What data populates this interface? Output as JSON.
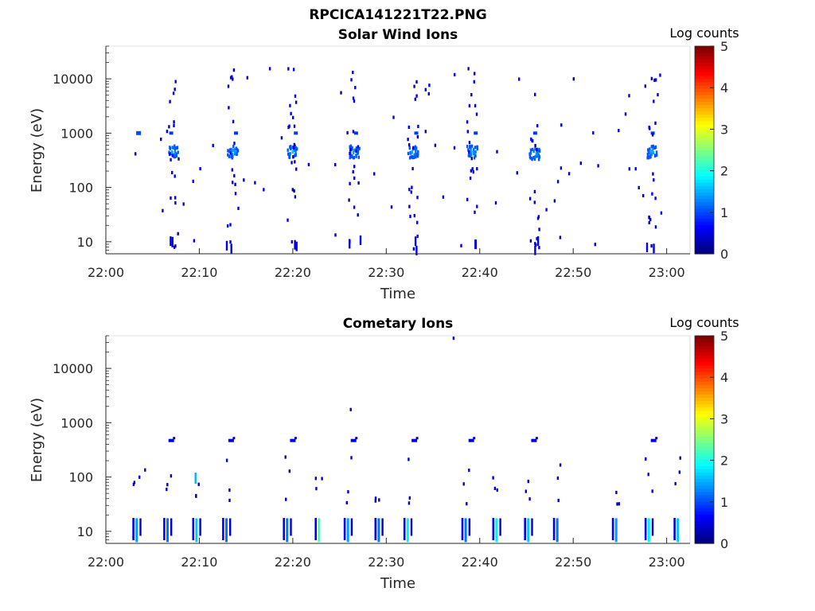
{
  "figure_title": "RPCICA141221T22.PNG",
  "chart_data": [
    {
      "type": "heatmap",
      "title": "Solar Wind Ions",
      "xlabel": "Time",
      "ylabel": "Energy (eV)",
      "yscale": "log",
      "ylim": [
        6,
        40000
      ],
      "xlim": [
        "22:00",
        "23:02.5"
      ],
      "x_ticks": [
        "22:00",
        "22:10",
        "22:20",
        "22:30",
        "22:40",
        "22:50",
        "23:00"
      ],
      "y_ticks": [
        "10",
        "100",
        "1000",
        "10000"
      ],
      "colorbar": {
        "label": "Log counts",
        "ticks": [
          "0",
          "1",
          "2",
          "3",
          "4",
          "5"
        ],
        "range": [
          0,
          5
        ],
        "colormap": "jet"
      },
      "grid": false,
      "blobs": [
        {
          "t": "22:07.2",
          "energy_eV": 450,
          "log_counts": 1.6
        },
        {
          "t": "22:13.6",
          "energy_eV": 450,
          "log_counts": 1.6
        },
        {
          "t": "22:20.0",
          "energy_eV": 450,
          "log_counts": 1.6
        },
        {
          "t": "22:26.6",
          "energy_eV": 450,
          "log_counts": 1.6
        },
        {
          "t": "22:32.9",
          "energy_eV": 450,
          "log_counts": 1.6
        },
        {
          "t": "22:39.2",
          "energy_eV": 450,
          "log_counts": 1.6
        },
        {
          "t": "22:45.9",
          "energy_eV": 420,
          "log_counts": 1.6
        },
        {
          "t": "22:58.5",
          "energy_eV": 450,
          "log_counts": 1.6
        }
      ]
    },
    {
      "type": "heatmap",
      "title": "Cometary Ions",
      "xlabel": "Time",
      "ylabel": "Energy (eV)",
      "yscale": "log",
      "ylim": [
        6,
        40000
      ],
      "xlim": [
        "22:00",
        "23:02.5"
      ],
      "x_ticks": [
        "22:00",
        "22:10",
        "22:20",
        "22:30",
        "22:40",
        "22:50",
        "23:00"
      ],
      "y_ticks": [
        "10",
        "100",
        "1000",
        "10000"
      ],
      "colorbar": {
        "label": "Log counts",
        "ticks": [
          "0",
          "1",
          "2",
          "3",
          "4",
          "5"
        ],
        "range": [
          0,
          5
        ],
        "colormap": "jet"
      },
      "grid": false,
      "bursts": [
        {
          "t": "22:03.3",
          "energy_eV": 12,
          "log_counts": 1.4
        },
        {
          "t": "22:06.6",
          "energy_eV": 12,
          "log_counts": 1.2
        },
        {
          "t": "22:09.7",
          "energy_eV": 12,
          "log_counts": 1.6
        },
        {
          "t": "22:12.9",
          "energy_eV": 12,
          "log_counts": 1.2
        },
        {
          "t": "22:19.4",
          "energy_eV": 12,
          "log_counts": 1.2
        },
        {
          "t": "22:22.8",
          "energy_eV": 12,
          "log_counts": 2.2
        },
        {
          "t": "22:25.9",
          "energy_eV": 12,
          "log_counts": 1.4
        },
        {
          "t": "22:29.2",
          "energy_eV": 12,
          "log_counts": 1.2
        },
        {
          "t": "22:32.3",
          "energy_eV": 12,
          "log_counts": 1.8
        },
        {
          "t": "22:38.5",
          "energy_eV": 12,
          "log_counts": 1.2
        },
        {
          "t": "22:41.8",
          "energy_eV": 12,
          "log_counts": 1.8
        },
        {
          "t": "22:45.2",
          "energy_eV": 12,
          "log_counts": 1.6
        },
        {
          "t": "22:48.3",
          "energy_eV": 12,
          "log_counts": 1.2
        },
        {
          "t": "22:54.6",
          "energy_eV": 12,
          "log_counts": 1.4
        },
        {
          "t": "22:58.1",
          "energy_eV": 12,
          "log_counts": 1.8
        },
        {
          "t": "23:01.2",
          "energy_eV": 12,
          "log_counts": 1.6
        }
      ]
    }
  ]
}
